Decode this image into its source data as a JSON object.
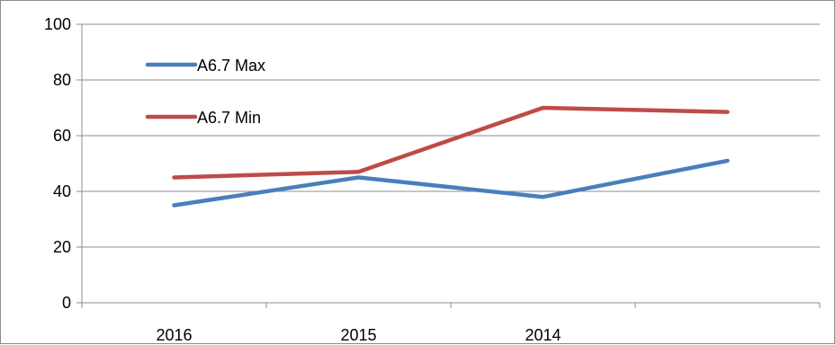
{
  "chart_data": {
    "type": "line",
    "title": "",
    "xlabel": "",
    "ylabel": "",
    "categories": [
      "2016",
      "2015",
      "2014",
      ""
    ],
    "series": [
      {
        "name": "A6.7 Max",
        "color": "#4a7ebb",
        "values": [
          35,
          45,
          38,
          51
        ]
      },
      {
        "name": "A6.7 Min",
        "color": "#be4b48",
        "values": [
          45,
          47,
          70,
          68.5
        ]
      }
    ],
    "ylim": [
      0,
      100
    ],
    "yticks": [
      0,
      20,
      40,
      60,
      80,
      100
    ],
    "grid": true,
    "legend_position": "top-left"
  }
}
